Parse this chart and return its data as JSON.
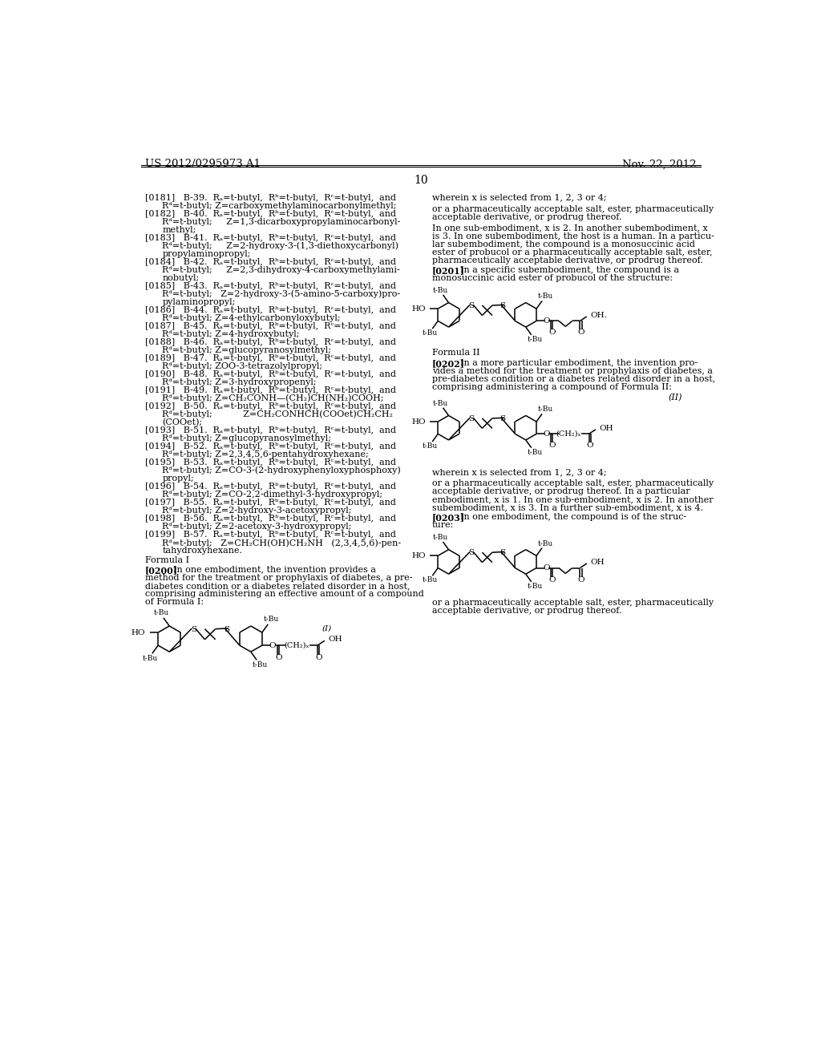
{
  "page_number": "10",
  "header_left": "US 2012/0295973 A1",
  "header_right": "Nov. 22, 2012",
  "background_color": "#ffffff",
  "left_column_text": [
    {
      "tag": "[0181]",
      "text": "B-39.  Rₐ=t-butyl,  Rᵇ=t-butyl,  Rᶜ=t-butyl,  and\nRᵈ=t-butyl; Z=carboxymethylaminocarbonylmethyl;"
    },
    {
      "tag": "[0182]",
      "text": "B-40.  Rₐ=t-butyl,  Rᵇ=t-butyl,  Rᶜ=t-butyl,  and\nRᵈ=t-butyl;     Z=1,3-dicarboxypropylaminocarbonyl-\nmethyl;"
    },
    {
      "tag": "[0183]",
      "text": "B-41.  Rₐ=t-butyl,  Rᵇ=t-butyl,  Rᶜ=t-butyl,  and\nRᵈ=t-butyl;     Z=2-hydroxy-3-(1,3-diethoxycarbonyl)\npropylaminopropyl;"
    },
    {
      "tag": "[0184]",
      "text": "B-42.  Rₐ=t-butyl,  Rᵇ=t-butyl,  Rᶜ=t-butyl,  and\nRᵈ=t-butyl;     Z=2,3-dihydroxy-4-carboxymethylami-\nnobutyl;"
    },
    {
      "tag": "[0185]",
      "text": "B-43.  Rₐ=t-butyl,  Rᵇ=t-butyl,  Rᶜ=t-butyl,  and\nRᵈ=t-butyl;   Z=2-hydroxy-3-(5-amino-5-carboxy)pro-\npylaminopropyl;"
    },
    {
      "tag": "[0186]",
      "text": "B-44.  Rₐ=t-butyl,  Rᵇ=t-butyl,  Rᶜ=t-butyl,  and\nRᵈ=t-butyl; Z=4-ethylcarbonyloxybutyl;"
    },
    {
      "tag": "[0187]",
      "text": "B-45.  Rₐ=t-butyl,  Rᵇ=t-butyl,  Rᶜ=t-butyl,  and\nRᵈ=t-butyl; Z=4-hydroxybutyl;"
    },
    {
      "tag": "[0188]",
      "text": "B-46.  Rₐ=t-butyl,  Rᵇ=t-butyl,  Rᶜ=t-butyl,  and\nRᵈ=t-butyl; Z=glucopyranosylmethyl;"
    },
    {
      "tag": "[0189]",
      "text": "B-47.  Rₐ=t-butyl,  Rᵇ=t-butyl,  Rᶜ=t-butyl,  and\nRᵈ=t-butyl; ZOO-3-tetrazolylpropyl;"
    },
    {
      "tag": "[0190]",
      "text": "B-48.  Rₐ=t-butyl,  Rᵇ=t-butyl,  Rᶜ=t-butyl,  and\nRᵈ=t-butyl; Z=3-hydroxypropenyl;"
    },
    {
      "tag": "[0191]",
      "text": "B-49.  Rₐ=t-butyl,  Rᵇ=t-butyl,  Rᶜ=t-butyl,  and\nRᵈ=t-butyl; Z=CH₂CONH—(CH₂)CH(NH₂)COOH;"
    },
    {
      "tag": "[0192]",
      "text": "B-50.  Rₐ=t-butyl,  Rᵇ=t-butyl,  Rᶜ=t-butyl,  and\nRᵈ=t-butyl;           Z=CH₂CONHCH(COOet)CH₂CH₂\n(COOet);"
    },
    {
      "tag": "[0193]",
      "text": "B-51.  Rₐ=t-butyl,  Rᵇ=t-butyl,  Rᶜ=t-butyl,  and\nRᵈ=t-butyl; Z=glucopyranosylmethyl;"
    },
    {
      "tag": "[0194]",
      "text": "B-52.  Rₐ=t-butyl,  Rᵇ=t-butyl,  Rᶜ=t-butyl,  and\nRᵈ=t-butyl; Z=2,3,4,5,6-pentahydroxyhexane;"
    },
    {
      "tag": "[0195]",
      "text": "B-53.  Rₐ=t-butyl,  Rᵇ=t-butyl,  Rᶜ=t-butyl,  and\nRᵈ=t-butyl; Z=CO-3-(2-hydroxyphenyloxyphosphoxy)\npropyl;"
    },
    {
      "tag": "[0196]",
      "text": "B-54.  Rₐ=t-butyl,  Rᵇ=t-butyl,  Rᶜ=t-butyl,  and\nRᵈ=t-butyl; Z=CO-2,2-dimethyl-3-hydroxypropyl;"
    },
    {
      "tag": "[0197]",
      "text": "B-55.  Rₐ=t-butyl,  Rᵇ=t-butyl,  Rᶜ=t-butyl,  and\nRᵈ=t-butyl; Z=2-hydroxy-3-acetoxypropyl;"
    },
    {
      "tag": "[0198]",
      "text": "B-56.  Rₐ=t-butyl,  Rᵇ=t-butyl,  Rᶜ=t-butyl,  and\nRᵈ=t-butyl; Z=2-acetoxy-3-hydroxypropyl;"
    },
    {
      "tag": "[0199]",
      "text": "B-57.  Rₐ=t-butyl,  Rᵇ=t-butyl,  Rᶜ=t-butyl,  and\nRᵈ=t-butyl;   Z=CH₂CH(OH)CH₂NH   (2,3,4,5,6)-pen-\ntahydroxyhexane."
    }
  ],
  "formula_I_label": "Formula I",
  "formula_I_tag": "[0200]",
  "formula_I_text_line1": "In one embodiment, the invention provides a",
  "formula_I_text_rest": [
    "method for the treatment or prophylaxis of diabetes, a pre-",
    "diabetes condition or a diabetes related disorder in a host,",
    "comprising administering an effective amount of a compound",
    "of Formula I:"
  ],
  "para_0201_tag": "[0201]",
  "para_0201_text": [
    "In a specific subembodiment, the compound is a",
    "monosuccinic acid ester of probucol of the structure:"
  ],
  "formula_II_label": "Formula II",
  "para_0202_tag": "[0202]",
  "para_0202_text": [
    "In a more particular embodiment, the invention pro-",
    "vides a method for the treatment or prophylaxis of diabetes, a",
    "pre-diabetes condition or a diabetes related disorder in a host,",
    "comprising administering a compound of Formula II:"
  ],
  "right_top_lines": [
    "wherein x is selected from 1, 2, 3 or 4;",
    "",
    "or a pharmaceutically acceptable salt, ester, pharmaceutically",
    "acceptable derivative, or prodrug thereof.",
    "",
    "In one sub-embodiment, x is 2. In another subembodiment, x",
    "is 3. In one subembodiment, the host is a human. In a particu-",
    "lar subembodiment, the compound is a monosuccinic acid",
    "ester of probucol or a pharmaceutically acceptable salt, ester,",
    "pharmaceutically acceptable derivative, or prodrug thereof."
  ],
  "right_after_II_lines": [
    "wherein x is selected from 1, 2, 3 or 4;",
    "",
    "or a pharmaceutically acceptable salt, ester, pharmaceutically",
    "acceptable derivative, or prodrug thereof. In a particular",
    "embodiment, x is 1. In one sub-embodiment, x is 2. In another",
    "subembodiment, x is 3. In a further sub-embodiment, x is 4."
  ],
  "para_0203_tag": "[0203]",
  "para_0203_text": [
    "In one embodiment, the compound is of the struc-",
    "ture:"
  ],
  "bottom_lines": [
    "or a pharmaceutically acceptable salt, ester, pharmaceutically",
    "acceptable derivative, or prodrug thereof."
  ]
}
